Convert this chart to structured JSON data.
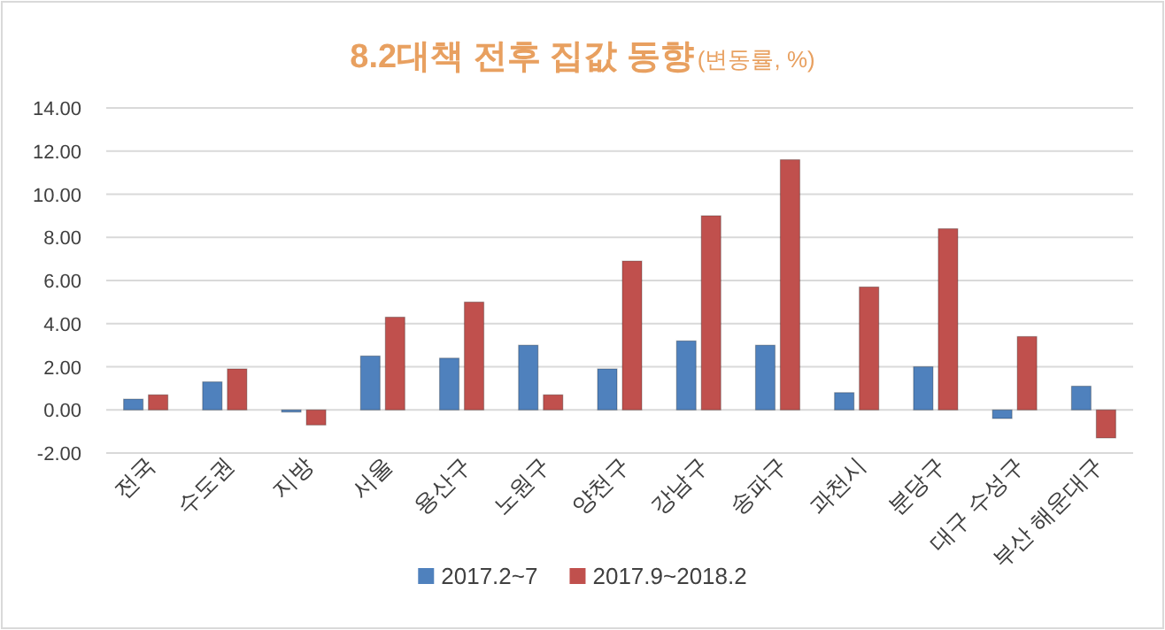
{
  "chart_data": {
    "type": "bar",
    "title": "8.2대책 전후 집값 동향",
    "subtitle": "(변동률, %)",
    "categories": [
      "전국",
      "수도권",
      "지방",
      "서울",
      "용산구",
      "노원구",
      "양천구",
      "강남구",
      "송파구",
      "과천시",
      "분당구",
      "대구 수성구",
      "부산 해운대구"
    ],
    "series": [
      {
        "name": "2017.2~7",
        "color": "#4f81bd",
        "values": [
          0.5,
          1.3,
          -0.1,
          2.5,
          2.4,
          3.0,
          1.9,
          3.2,
          3.0,
          0.8,
          2.0,
          -0.4,
          1.1
        ]
      },
      {
        "name": "2017.9~2018.2",
        "color": "#c0504d",
        "values": [
          0.7,
          1.9,
          -0.7,
          4.3,
          5.0,
          0.7,
          6.9,
          9.0,
          11.6,
          5.7,
          8.4,
          3.4,
          -1.3
        ]
      }
    ],
    "ylim": [
      -2,
      14
    ],
    "yticks": [
      {
        "value": -2,
        "label": "-2.00"
      },
      {
        "value": 0,
        "label": "0.00"
      },
      {
        "value": 2,
        "label": "2.00"
      },
      {
        "value": 4,
        "label": "4.00"
      },
      {
        "value": 6,
        "label": "6.00"
      },
      {
        "value": 8,
        "label": "8.00"
      },
      {
        "value": 10,
        "label": "10.00"
      },
      {
        "value": 12,
        "label": "12.00"
      },
      {
        "value": 14,
        "label": "14.00"
      }
    ],
    "grid": "y",
    "legend": "bottom"
  }
}
